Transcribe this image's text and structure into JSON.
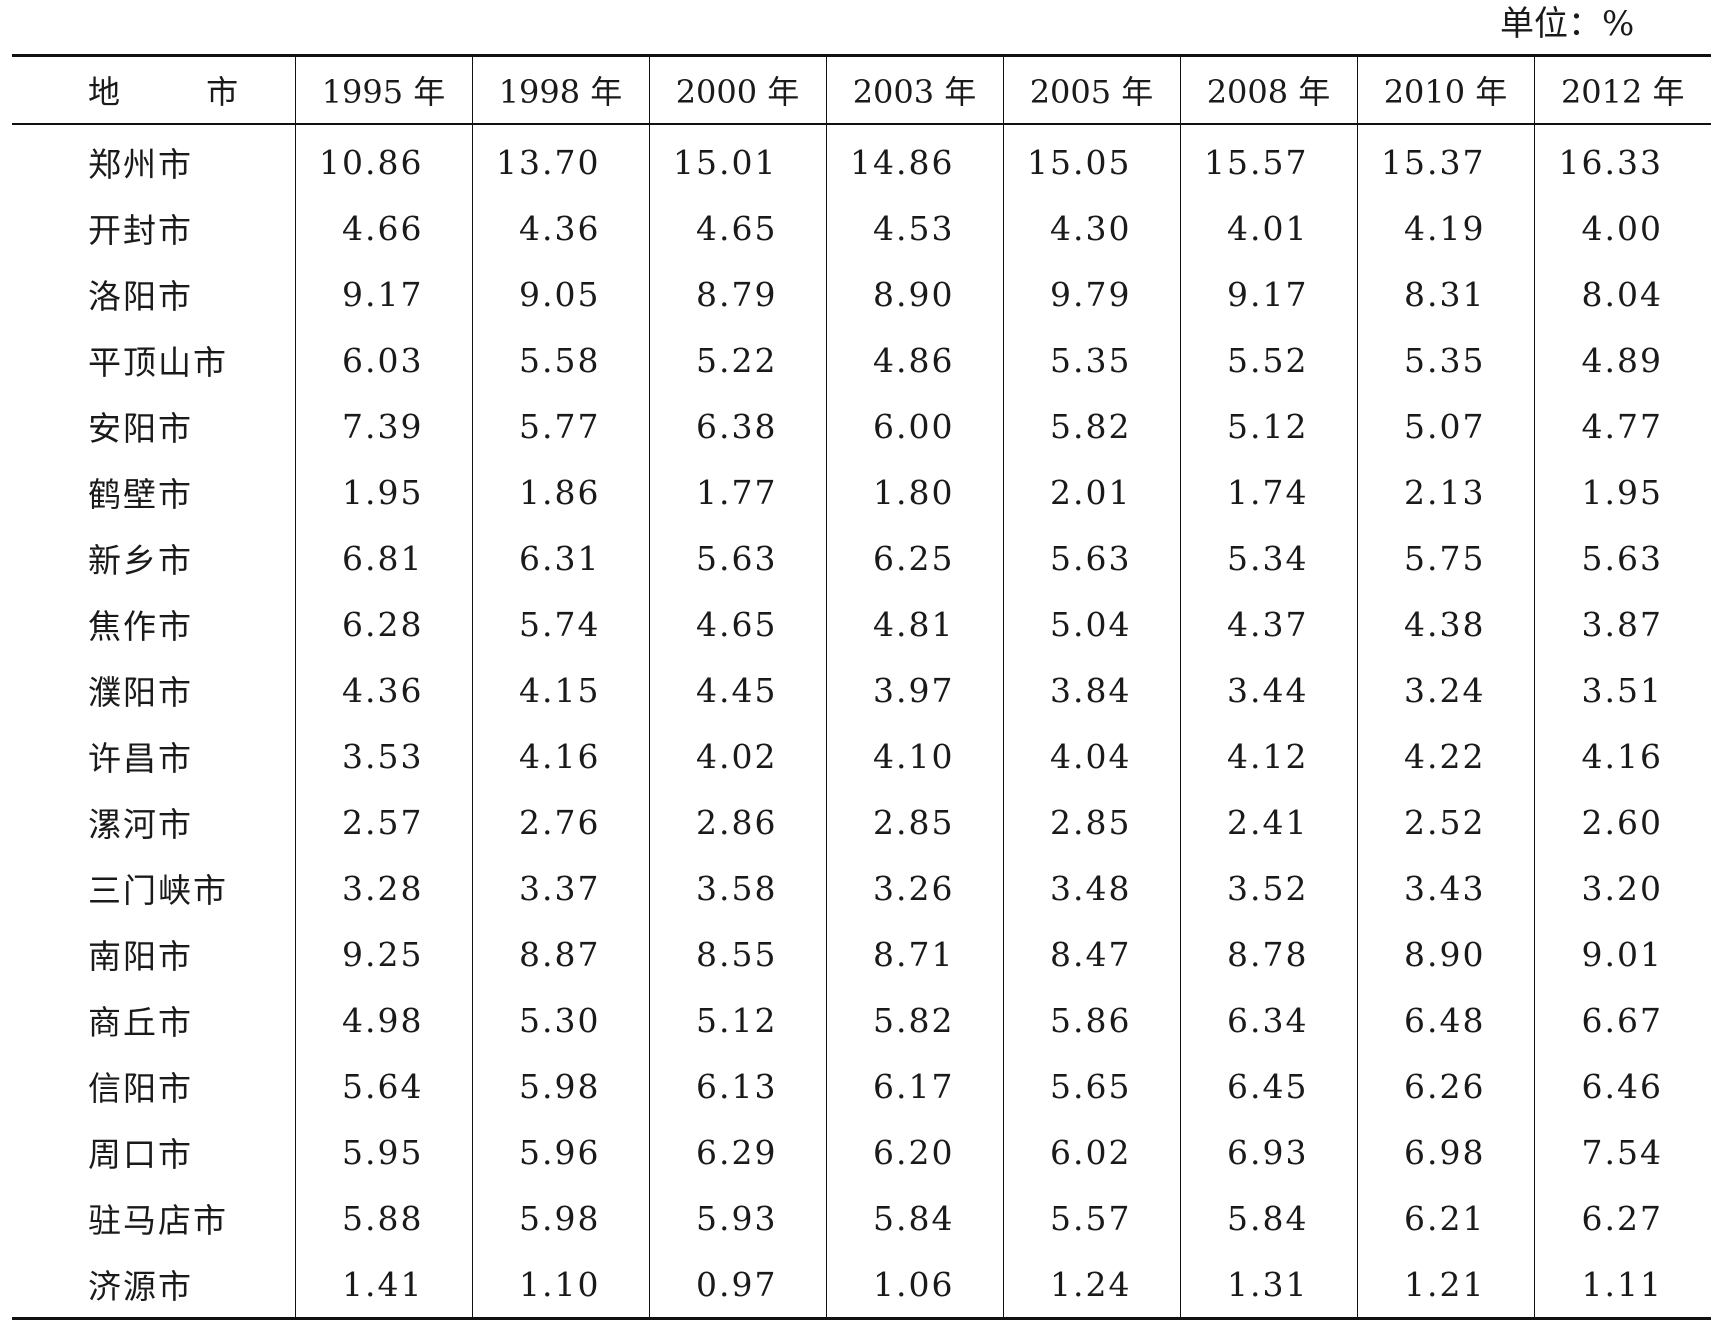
{
  "unit_label": "单位：%",
  "columns": {
    "region": "地 市",
    "years": [
      "1995 年",
      "1998 年",
      "2000 年",
      "2003 年",
      "2005 年",
      "2008 年",
      "2010 年",
      "2012 年"
    ]
  },
  "rows": [
    {
      "city": "郑州市",
      "values": [
        "10.86",
        "13.70",
        "15.01",
        "14.86",
        "15.05",
        "15.57",
        "15.37",
        "16.33"
      ]
    },
    {
      "city": "开封市",
      "values": [
        "4.66",
        "4.36",
        "4.65",
        "4.53",
        "4.30",
        "4.01",
        "4.19",
        "4.00"
      ]
    },
    {
      "city": "洛阳市",
      "values": [
        "9.17",
        "9.05",
        "8.79",
        "8.90",
        "9.79",
        "9.17",
        "8.31",
        "8.04"
      ]
    },
    {
      "city": "平顶山市",
      "values": [
        "6.03",
        "5.58",
        "5.22",
        "4.86",
        "5.35",
        "5.52",
        "5.35",
        "4.89"
      ]
    },
    {
      "city": "安阳市",
      "values": [
        "7.39",
        "5.77",
        "6.38",
        "6.00",
        "5.82",
        "5.12",
        "5.07",
        "4.77"
      ]
    },
    {
      "city": "鹤壁市",
      "values": [
        "1.95",
        "1.86",
        "1.77",
        "1.80",
        "2.01",
        "1.74",
        "2.13",
        "1.95"
      ]
    },
    {
      "city": "新乡市",
      "values": [
        "6.81",
        "6.31",
        "5.63",
        "6.25",
        "5.63",
        "5.34",
        "5.75",
        "5.63"
      ]
    },
    {
      "city": "焦作市",
      "values": [
        "6.28",
        "5.74",
        "4.65",
        "4.81",
        "5.04",
        "4.37",
        "4.38",
        "3.87"
      ]
    },
    {
      "city": "濮阳市",
      "values": [
        "4.36",
        "4.15",
        "4.45",
        "3.97",
        "3.84",
        "3.44",
        "3.24",
        "3.51"
      ]
    },
    {
      "city": "许昌市",
      "values": [
        "3.53",
        "4.16",
        "4.02",
        "4.10",
        "4.04",
        "4.12",
        "4.22",
        "4.16"
      ]
    },
    {
      "city": "漯河市",
      "values": [
        "2.57",
        "2.76",
        "2.86",
        "2.85",
        "2.85",
        "2.41",
        "2.52",
        "2.60"
      ]
    },
    {
      "city": "三门峡市",
      "values": [
        "3.28",
        "3.37",
        "3.58",
        "3.26",
        "3.48",
        "3.52",
        "3.43",
        "3.20"
      ]
    },
    {
      "city": "南阳市",
      "values": [
        "9.25",
        "8.87",
        "8.55",
        "8.71",
        "8.47",
        "8.78",
        "8.90",
        "9.01"
      ]
    },
    {
      "city": "商丘市",
      "values": [
        "4.98",
        "5.30",
        "5.12",
        "5.82",
        "5.86",
        "6.34",
        "6.48",
        "6.67"
      ]
    },
    {
      "city": "信阳市",
      "values": [
        "5.64",
        "5.98",
        "6.13",
        "6.17",
        "5.65",
        "6.45",
        "6.26",
        "6.46"
      ]
    },
    {
      "city": "周口市",
      "values": [
        "5.95",
        "5.96",
        "6.29",
        "6.20",
        "6.02",
        "6.93",
        "6.98",
        "7.54"
      ]
    },
    {
      "city": "驻马店市",
      "values": [
        "5.88",
        "5.98",
        "5.93",
        "5.84",
        "5.57",
        "5.84",
        "6.21",
        "6.27"
      ]
    },
    {
      "city": "济源市",
      "values": [
        "1.41",
        "1.10",
        "0.97",
        "1.06",
        "1.24",
        "1.31",
        "1.21",
        "1.11"
      ]
    }
  ]
}
